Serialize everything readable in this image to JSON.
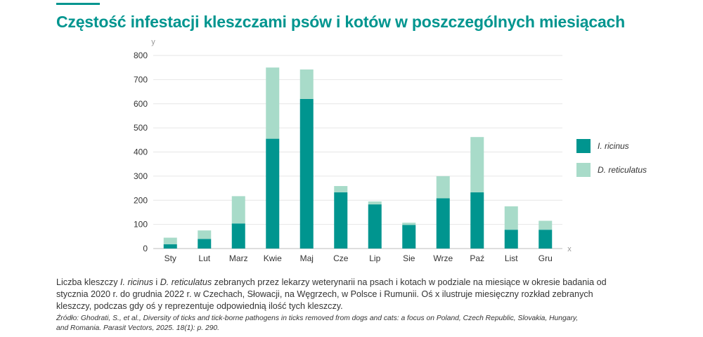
{
  "header": {
    "title": "Częstość infestacji kleszczami psów i kotów w poszczególnych miesiącach"
  },
  "colors": {
    "accent": "#00958f",
    "ricinus": "#00958f",
    "reticulatus": "#a8dbc9",
    "grid": "#e6e6e6"
  },
  "chart_data": {
    "type": "bar",
    "stacked": true,
    "title": "Częstość infestacji kleszczami psów i kotów w poszczególnych miesiącach",
    "xlabel": "x",
    "ylabel": "y",
    "ylim": [
      0,
      800
    ],
    "yticks": [
      0,
      100,
      200,
      300,
      400,
      500,
      600,
      700,
      800
    ],
    "grid": true,
    "legend_position": "right",
    "categories": [
      "Sty",
      "Lut",
      "Marz",
      "Kwie",
      "Maj",
      "Cze",
      "Lip",
      "Sie",
      "Wrze",
      "Paź",
      "List",
      "Gru"
    ],
    "series": [
      {
        "name": "I. ricinus",
        "color": "#00958f",
        "values": [
          18,
          40,
          104,
          455,
          620,
          233,
          183,
          98,
          208,
          233,
          78,
          78
        ]
      },
      {
        "name": "D. reticulatus",
        "color": "#a8dbc9",
        "values": [
          27,
          35,
          113,
          295,
          122,
          26,
          12,
          9,
          92,
          229,
          97,
          37
        ]
      }
    ]
  },
  "legend": {
    "items": [
      {
        "label": "I. ricinus"
      },
      {
        "label": "D. reticulatus"
      }
    ]
  },
  "caption": {
    "prefix": "Liczba kleszczy ",
    "species1": "I. ricinus",
    "conj": " i ",
    "species2": "D. reticulatus",
    "rest": " zebranych przez lekarzy weterynarii na psach i kotach w podziale na miesiące w okresie badania od stycznia 2020 r. do grudnia 2022 r. w Czechach, Słowacji, na Węgrzech, w Polsce i Rumunii. Oś x ilustruje miesięczny rozkład zebranych kleszczy, podczas gdy oś y reprezentuje odpowiednią ilość tych kleszczy."
  },
  "source": {
    "text": "Źródło: Ghodrati, S., et al., Diversity of ticks and tick-borne pathogens in ticks removed from dogs and cats: a focus on Poland, Czech Republic, Slovakia, Hungary, and Romania. Parasit Vectors, 2025. 18(1): p. 290."
  }
}
